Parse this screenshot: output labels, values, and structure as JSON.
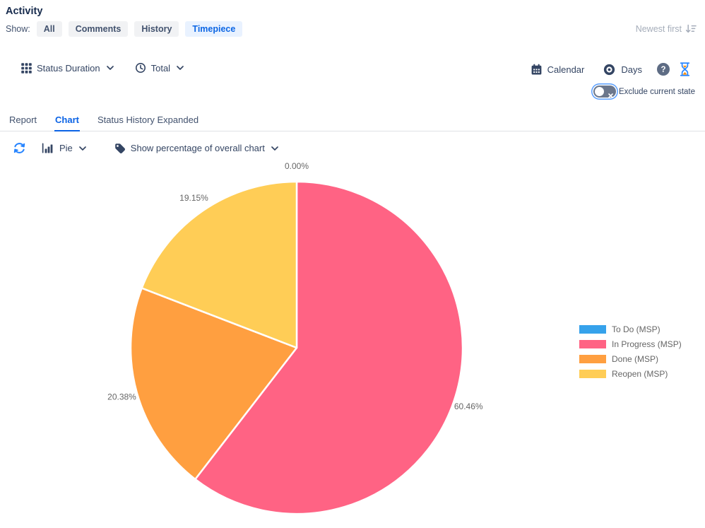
{
  "page": {
    "title": "Activity"
  },
  "filters": {
    "label": "Show:",
    "items": [
      {
        "label": "All",
        "active": false
      },
      {
        "label": "Comments",
        "active": false
      },
      {
        "label": "History",
        "active": false
      },
      {
        "label": "Timepiece",
        "active": true
      }
    ]
  },
  "sort": {
    "label": "Newest first"
  },
  "toolbar": {
    "view_selector": "Status Duration",
    "metric_selector": "Total",
    "calendar_label": "Calendar",
    "unit_label": "Days",
    "toggle_label": "Exclude current state",
    "toggle_state": "off"
  },
  "tabs": [
    {
      "label": "Report",
      "active": false
    },
    {
      "label": "Chart",
      "active": true
    },
    {
      "label": "Status History Expanded",
      "active": false
    }
  ],
  "chart_controls": {
    "chart_type": "Pie",
    "percentage_mode": "Show percentage of overall chart"
  },
  "chart_data": {
    "type": "pie",
    "labels": [
      "To Do (MSP)",
      "In Progress (MSP)",
      "Done (MSP)",
      "Reopen (MSP)"
    ],
    "values": [
      0.0,
      60.46,
      20.38,
      19.15
    ],
    "value_labels": [
      "0.00%",
      "60.46%",
      "20.38%",
      "19.15%"
    ],
    "colors": [
      "#36A2EB",
      "#FF6384",
      "#FF9F40",
      "#FFCD56"
    ],
    "title": "",
    "legend_position": "right",
    "start_angle_deg": 0,
    "direction": "clockwise",
    "slice_border_color": "#FFFFFF",
    "label_color": "#666666"
  },
  "icons": {
    "grid-icon": "3x3 dot grid",
    "clock-icon": "clock outline",
    "chevron-down-icon": "v",
    "calendar-icon": "calendar",
    "eye-icon": "filled eye/target",
    "help-icon": "? in circle",
    "hourglass-icon": "hourglass with orange sand",
    "toggle-off-icon": "switch with x",
    "sort-descending-icon": "arrow down with bars",
    "refresh-icon": "two circular arrows",
    "bar-chart-icon": "column chart",
    "tag-icon": "label tag"
  },
  "colors": {
    "accent_blue": "#0B63E5",
    "icon_blue": "#2684FF",
    "navy_text": "#344563",
    "muted_text": "#A5ADBA",
    "divider": "#DFE1E6",
    "sand_orange": "#FF8B00"
  }
}
